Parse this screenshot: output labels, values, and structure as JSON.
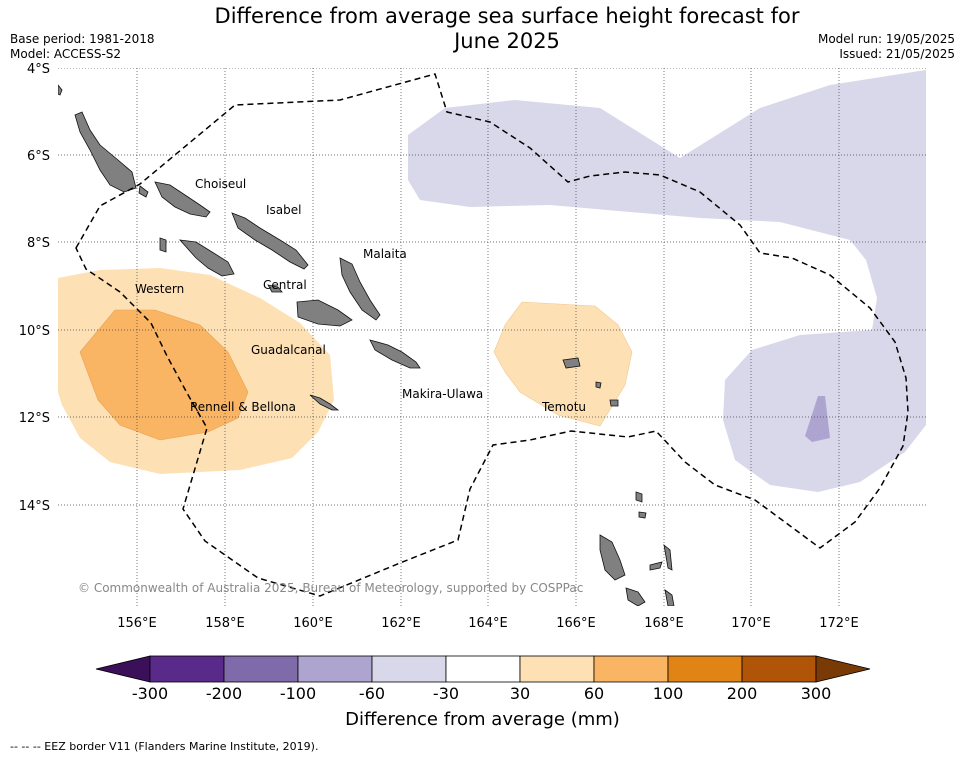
{
  "title_line1": "Difference from average sea surface height forecast for",
  "title_line2": "June 2025",
  "base_period": "Base period: 1981-2018",
  "model": "Model: ACCESS-S2",
  "model_run": "Model run: 19/05/2025",
  "issued": "Issued: 21/05/2025",
  "lat_labels": [
    "4°S",
    "6°S",
    "8°S",
    "10°S",
    "12°S",
    "14°S"
  ],
  "lon_labels": [
    "156°E",
    "158°E",
    "160°E",
    "162°E",
    "164°E",
    "166°E",
    "168°E",
    "170°E",
    "172°E"
  ],
  "place_labels": {
    "choiseul": "Choiseul",
    "isabel": "Isabel",
    "malaita": "Malaita",
    "western": "Western",
    "central": "Central",
    "guadalcanal": "Guadalcanal",
    "rennell": "Rennell & Bellona",
    "makira": "Makira-Ulawa",
    "temotu": "Temotu"
  },
  "copyright": "© Commonwealth of Australia 2025, Bureau of Meteorology, supported by COSPPac",
  "legend": {
    "title": "Difference from average (mm)",
    "ticks": [
      "-300",
      "-200",
      "-100",
      "-60",
      "-30",
      "30",
      "60",
      "100",
      "200",
      "300"
    ],
    "colors": [
      "#3b0f5a",
      "#5a2a8a",
      "#7f6aaa",
      "#ada5cf",
      "#d8d8ea",
      "#ffffff",
      "#fde0b4",
      "#f9b464",
      "#e08416",
      "#b05408",
      "#7a3a06"
    ]
  },
  "footnote": "--  --  -- EEZ border V11 (Flanders Marine Institute, 2019)."
}
